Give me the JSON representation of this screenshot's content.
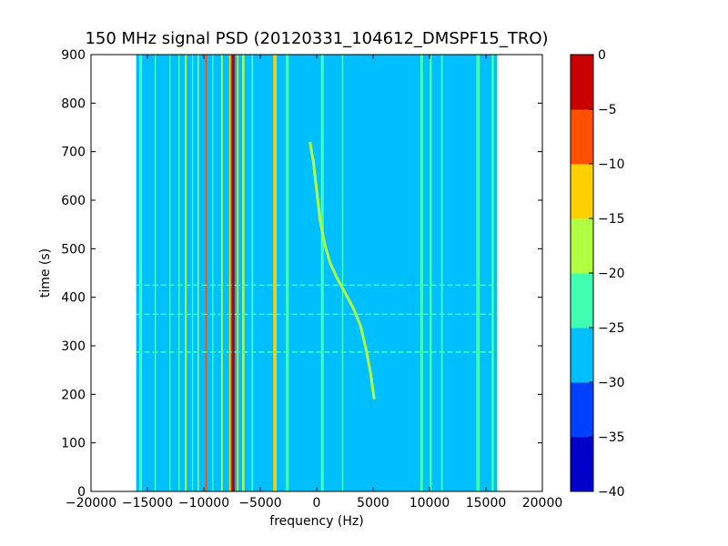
{
  "chart_data": {
    "type": "heatmap",
    "title": "150 MHz signal PSD (20120331_104612_DMSPF15_TRO)",
    "xlabel": "frequency (Hz)",
    "ylabel": "time (s)",
    "xlim": [
      -20000,
      20000
    ],
    "ylim": [
      0,
      900
    ],
    "xticks": [
      -20000,
      -15000,
      -10000,
      -5000,
      0,
      5000,
      10000,
      15000,
      20000
    ],
    "yticks": [
      0,
      100,
      200,
      300,
      400,
      500,
      600,
      700,
      800,
      900
    ],
    "data_extent_x": [
      -16000,
      16000
    ],
    "colorbar": {
      "levels": [
        -40,
        -35,
        -30,
        -25,
        -20,
        -15,
        -10,
        -5,
        0
      ],
      "tick_labels": [
        "−40",
        "−35",
        "−30",
        "−25",
        "−20",
        "−15",
        "−10",
        "−5",
        "0"
      ],
      "colors": [
        "#0000c8",
        "#0040ff",
        "#00bfff",
        "#40ffb0",
        "#b0ff40",
        "#ffd000",
        "#ff5000",
        "#c80000"
      ]
    },
    "background_level": -27.5,
    "vertical_bands": [
      {
        "x": -15600,
        "width": 250,
        "level": -22.5
      },
      {
        "x": -14300,
        "width": 120,
        "level": -22.5
      },
      {
        "x": -13000,
        "width": 100,
        "level": -22.5
      },
      {
        "x": -12200,
        "width": 120,
        "level": -22.5
      },
      {
        "x": -11600,
        "width": 150,
        "level": -17.5
      },
      {
        "x": -11000,
        "width": 120,
        "level": -22.5
      },
      {
        "x": -10500,
        "width": 120,
        "level": -17.5
      },
      {
        "x": -9800,
        "width": 150,
        "level": -7.5
      },
      {
        "x": -9200,
        "width": 120,
        "level": -22.5
      },
      {
        "x": -8400,
        "width": 150,
        "level": -17.5
      },
      {
        "x": -7700,
        "width": 120,
        "level": -12.5
      },
      {
        "x": -7400,
        "width": 300,
        "level": -2.5
      },
      {
        "x": -7000,
        "width": 150,
        "level": -12.5
      },
      {
        "x": -6500,
        "width": 200,
        "level": -17.5
      },
      {
        "x": -5700,
        "width": 150,
        "level": -22.5
      },
      {
        "x": -3700,
        "width": 300,
        "level": -12.5
      },
      {
        "x": -2600,
        "width": 250,
        "level": -22.5
      },
      {
        "x": 500,
        "width": 250,
        "level": -22.5
      },
      {
        "x": 2300,
        "width": 120,
        "level": -22.5
      },
      {
        "x": 9300,
        "width": 250,
        "level": -22.5
      },
      {
        "x": 10100,
        "width": 200,
        "level": -22.5
      },
      {
        "x": 11100,
        "width": 150,
        "level": -22.5
      },
      {
        "x": 14300,
        "width": 300,
        "level": -22.5
      },
      {
        "x": 15600,
        "width": 200,
        "level": -22.5
      }
    ],
    "horizontal_lines": [
      {
        "y": 287,
        "x": [
          -16000,
          16000
        ],
        "level": -22.5
      },
      {
        "y": 365,
        "x": [
          -16000,
          16000
        ],
        "level": -22.5
      },
      {
        "y": 425,
        "x": [
          -16000,
          16000
        ],
        "level": -22.5
      }
    ],
    "doppler_trace": {
      "level": -20,
      "points": [
        [
          -600,
          720
        ],
        [
          -300,
          680
        ],
        [
          0,
          620
        ],
        [
          300,
          560
        ],
        [
          700,
          510
        ],
        [
          1200,
          470
        ],
        [
          1800,
          440
        ],
        [
          2500,
          410
        ],
        [
          3300,
          375
        ],
        [
          3900,
          340
        ],
        [
          4400,
          290
        ],
        [
          4800,
          240
        ],
        [
          5100,
          190
        ]
      ]
    }
  }
}
